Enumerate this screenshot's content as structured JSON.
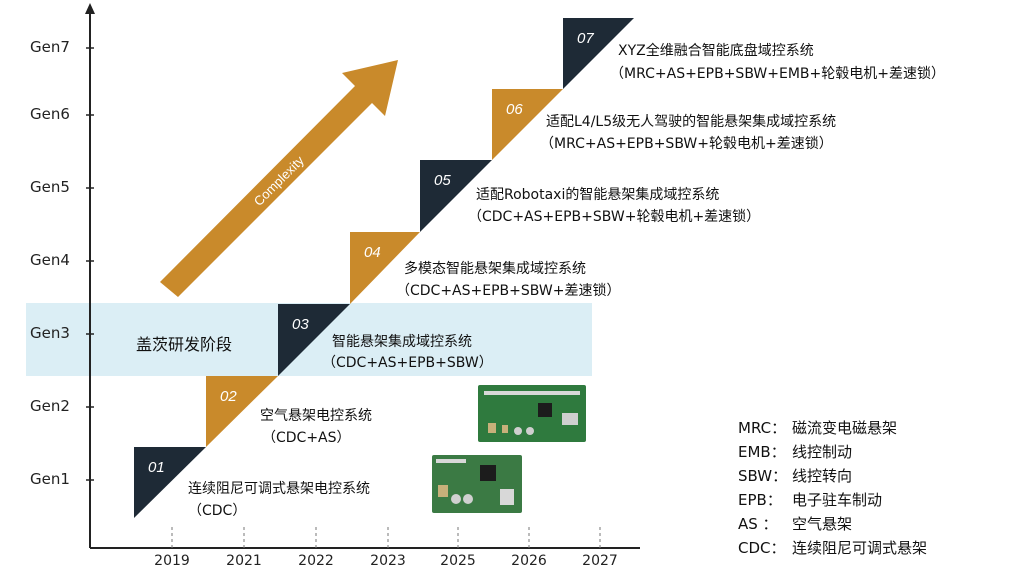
{
  "y_axis": [
    "Gen1",
    "Gen2",
    "Gen3",
    "Gen4",
    "Gen5",
    "Gen6",
    "Gen7"
  ],
  "x_axis": [
    "2019",
    "2021",
    "2022",
    "2023",
    "2025",
    "2026",
    "2027"
  ],
  "band_label": "盖茨研发阶段",
  "arrow_label": "Complexity",
  "steps": [
    {
      "num": "01",
      "title": "连续阻尼可调式悬架电控系统",
      "sub": "（CDC）",
      "color": "#1e2a36"
    },
    {
      "num": "02",
      "title": "空气悬架电控系统",
      "sub": "（CDC+AS）",
      "color": "#c98a2b"
    },
    {
      "num": "03",
      "title": "智能悬架集成域控系统",
      "sub": "（CDC+AS+EPB+SBW）",
      "color": "#1e2a36"
    },
    {
      "num": "04",
      "title": "多模态智能悬架集成域控系统",
      "sub": "（CDC+AS+EPB+SBW+差速锁）",
      "color": "#c98a2b"
    },
    {
      "num": "05",
      "title": "适配Robotaxi的智能悬架集成域控系统",
      "sub": "（CDC+AS+EPB+SBW+轮毂电机+差速锁）",
      "color": "#1e2a36"
    },
    {
      "num": "06",
      "title": "适配L4/L5级无人驾驶的智能悬架集成域控系统",
      "sub": "（MRC+AS+EPB+SBW+轮毂电机+差速锁）",
      "color": "#c98a2b"
    },
    {
      "num": "07",
      "title": "XYZ全维融合智能底盘域控系统",
      "sub": "（MRC+AS+EPB+SBW+EMB+轮毂电机+差速锁）",
      "color": "#1e2a36"
    }
  ],
  "legend": [
    {
      "key": "MRC：",
      "value": "磁流变电磁悬架"
    },
    {
      "key": "EMB：",
      "value": "线控制动"
    },
    {
      "key": "SBW：",
      "value": "线控转向"
    },
    {
      "key": "EPB：",
      "value": "电子驻车制动"
    },
    {
      "key": "AS ：",
      "value": "空气悬架"
    },
    {
      "key": "CDC：",
      "value": "连续阻尼可调式悬架"
    }
  ],
  "colors": {
    "dark": "#1e2a36",
    "gold": "#c98a2b",
    "band": "#dbeef5",
    "board": "#2f7a3e"
  }
}
